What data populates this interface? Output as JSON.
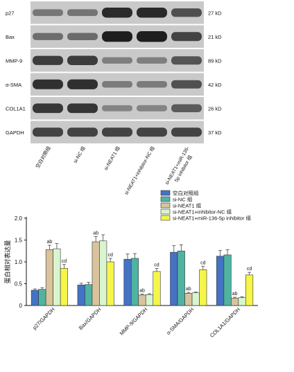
{
  "western_blot": {
    "rows": [
      {
        "protein": "p27",
        "size": "27 kD"
      },
      {
        "protein": "Bax",
        "size": "21 kD"
      },
      {
        "protein": "MMP-9",
        "size": "89 kD"
      },
      {
        "protein": "α-SMA",
        "size": "42 kD"
      },
      {
        "protein": "COL1A1",
        "size": "26 kD"
      },
      {
        "protein": "GAPDH",
        "size": "37 kD"
      }
    ],
    "lanes": [
      "空白对照组",
      "si-NC 组",
      "si-NEAT1 组",
      "si-NEAT1+inhibitor-NC 组",
      "si-NEAT1+miR-136-5p inhibitor 组"
    ],
    "lane_label_lines": [
      [
        "空白对照组"
      ],
      [
        "si-NC 组"
      ],
      [
        "si-NEAT1 组"
      ],
      [
        "si-NEAT1+inhibitor-NC 组"
      ],
      [
        "si-NEAT1+miR-136-",
        "5p inhibitor 组"
      ]
    ],
    "band_intensity": [
      [
        0.35,
        0.37,
        1.28,
        1.3,
        0.85
      ],
      [
        0.47,
        0.48,
        1.46,
        1.48,
        1.0
      ],
      [
        1.06,
        1.08,
        0.24,
        0.25,
        0.78
      ],
      [
        1.22,
        1.25,
        0.28,
        0.29,
        0.82
      ],
      [
        1.13,
        1.16,
        0.17,
        0.18,
        0.7
      ],
      [
        1.0,
        1.0,
        1.0,
        1.0,
        1.0
      ]
    ]
  },
  "chart_data": {
    "type": "bar",
    "ylabel": "蛋白相对表达量",
    "ylim": [
      0,
      2.0
    ],
    "yticks": [
      "0",
      "0.5",
      "1.0",
      "1.5",
      "2.0"
    ],
    "categories": [
      "p27/GAPDH",
      "Bax/GAPDH",
      "MMP-9/GAPDH",
      "α-SMA/GAPDH",
      "COL1A1/GAPDH"
    ],
    "legend_position": "top-right",
    "series": [
      {
        "name": "空白对照组",
        "color": "#4472c4",
        "values": [
          0.35,
          0.47,
          1.06,
          1.22,
          1.13
        ],
        "errors": [
          0.03,
          0.04,
          0.12,
          0.15,
          0.13
        ],
        "annotations": [
          "",
          "",
          "",
          "",
          ""
        ]
      },
      {
        "name": "si-NC 组",
        "color": "#4fb3a2",
        "values": [
          0.37,
          0.48,
          1.08,
          1.25,
          1.16
        ],
        "errors": [
          0.04,
          0.05,
          0.11,
          0.14,
          0.12
        ],
        "annotations": [
          "",
          "",
          "",
          "",
          ""
        ]
      },
      {
        "name": "si-NEAT1 组",
        "color": "#d8c39c",
        "values": [
          1.28,
          1.46,
          0.24,
          0.28,
          0.17
        ],
        "errors": [
          0.1,
          0.12,
          0.02,
          0.02,
          0.02
        ],
        "annotations": [
          "ab",
          "ab",
          "ab",
          "ab",
          "ab"
        ]
      },
      {
        "name": "si-NEAT1+inhibitor-NC 组",
        "color": "#d9f5cf",
        "values": [
          1.3,
          1.48,
          0.25,
          0.29,
          0.18
        ],
        "errors": [
          0.12,
          0.14,
          0.02,
          0.02,
          0.02
        ],
        "annotations": [
          "",
          "",
          "",
          "",
          ""
        ]
      },
      {
        "name": "si-NEAT1+miR-136-5p inhibitor 组",
        "color": "#f5f54a",
        "values": [
          0.85,
          1.0,
          0.78,
          0.82,
          0.7
        ],
        "errors": [
          0.09,
          0.08,
          0.07,
          0.08,
          0.06
        ],
        "annotations": [
          "cd",
          "cd",
          "cd",
          "cd",
          "cd"
        ]
      }
    ]
  }
}
